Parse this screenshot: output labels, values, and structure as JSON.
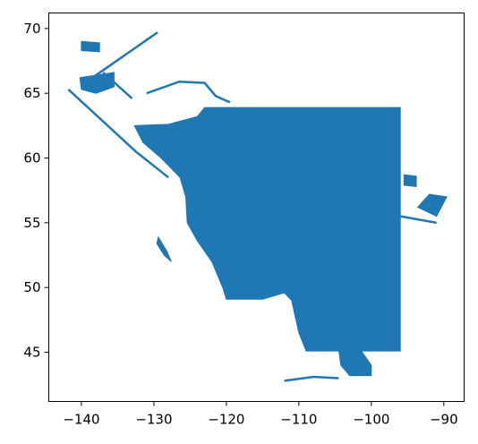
{
  "chart_data": {
    "type": "map",
    "title": "",
    "xlabel": "",
    "ylabel": "",
    "xlim": [
      -144.5,
      -87.2
    ],
    "ylim": [
      41.2,
      71.2
    ],
    "xticks": [
      -140,
      -130,
      -120,
      -110,
      -100,
      -90
    ],
    "yticks": [
      45,
      50,
      55,
      60,
      65,
      70
    ],
    "xtick_labels": [
      "−140",
      "−130",
      "−120",
      "−110",
      "−100",
      "−90"
    ],
    "ytick_labels": [
      "45",
      "50",
      "55",
      "60",
      "65",
      "70"
    ],
    "grid": false,
    "fill_color": "#1f77b4",
    "polygons": [
      {
        "name": "main-region",
        "coords": [
          [
            -123.0,
            63.9
          ],
          [
            -96.0,
            63.9
          ],
          [
            -96.0,
            45.1
          ],
          [
            -109.0,
            45.1
          ],
          [
            -110.0,
            46.5
          ],
          [
            -111.0,
            49.0
          ],
          [
            -112.0,
            49.6
          ],
          [
            -115.0,
            49.1
          ],
          [
            -120.0,
            49.1
          ],
          [
            -120.5,
            50.0
          ],
          [
            -122.0,
            52.0
          ],
          [
            -124.0,
            53.6
          ],
          [
            -125.4,
            55.0
          ],
          [
            -125.6,
            57.0
          ],
          [
            -126.4,
            58.5
          ],
          [
            -129.0,
            60.0
          ],
          [
            -131.5,
            61.2
          ],
          [
            -132.7,
            62.5
          ],
          [
            -128.0,
            62.6
          ],
          [
            -124.0,
            63.2
          ]
        ]
      },
      {
        "name": "south-lobe",
        "coords": [
          [
            -104.5,
            45.2
          ],
          [
            -101.5,
            45.2
          ],
          [
            -100.0,
            44.0
          ],
          [
            -100.0,
            43.2
          ],
          [
            -103.0,
            43.2
          ],
          [
            -104.2,
            44.0
          ]
        ]
      },
      {
        "name": "northwest-islands",
        "coords": [
          [
            -140.2,
            66.2
          ],
          [
            -135.5,
            66.6
          ],
          [
            -135.5,
            65.5
          ],
          [
            -138.0,
            65.0
          ],
          [
            -140.0,
            65.3
          ]
        ]
      },
      {
        "name": "far-north-islands",
        "coords": [
          [
            -140.0,
            69.0
          ],
          [
            -137.5,
            68.9
          ],
          [
            -137.5,
            68.2
          ],
          [
            -140.0,
            68.3
          ]
        ]
      },
      {
        "name": "east-strip",
        "coords": [
          [
            -92.0,
            57.2
          ],
          [
            -89.6,
            57.0
          ],
          [
            -91.0,
            55.5
          ],
          [
            -93.6,
            56.2
          ]
        ]
      },
      {
        "name": "east-strip-north",
        "coords": [
          [
            -95.5,
            58.7
          ],
          [
            -93.8,
            58.6
          ],
          [
            -93.8,
            57.8
          ],
          [
            -95.5,
            57.9
          ]
        ]
      },
      {
        "name": "lake-southwest",
        "coords": [
          [
            -129.4,
            53.9
          ],
          [
            -128.2,
            52.8
          ],
          [
            -127.6,
            52.0
          ],
          [
            -128.6,
            52.5
          ],
          [
            -129.6,
            53.4
          ]
        ]
      }
    ],
    "lines": [
      {
        "name": "coast-line-nw",
        "coords": [
          [
            -141.8,
            65.3
          ],
          [
            -132.5,
            60.5
          ],
          [
            -128.0,
            58.5
          ]
        ]
      },
      {
        "name": "long-line-north",
        "coords": [
          [
            -139.0,
            66.0
          ],
          [
            -129.5,
            69.7
          ]
        ]
      },
      {
        "name": "north-arc",
        "coords": [
          [
            -131.0,
            65.0
          ],
          [
            -126.5,
            65.9
          ],
          [
            -123.0,
            65.8
          ],
          [
            -121.5,
            64.8
          ],
          [
            -119.5,
            64.3
          ]
        ]
      },
      {
        "name": "delta-line",
        "coords": [
          [
            -137.0,
            66.6
          ],
          [
            -133.0,
            64.6
          ]
        ]
      },
      {
        "name": "east-channel",
        "coords": [
          [
            -96.0,
            55.5
          ],
          [
            -91.0,
            55.0
          ]
        ]
      },
      {
        "name": "south-channel",
        "coords": [
          [
            -112.0,
            42.8
          ],
          [
            -108.0,
            43.1
          ],
          [
            -104.5,
            43.0
          ]
        ]
      }
    ]
  }
}
